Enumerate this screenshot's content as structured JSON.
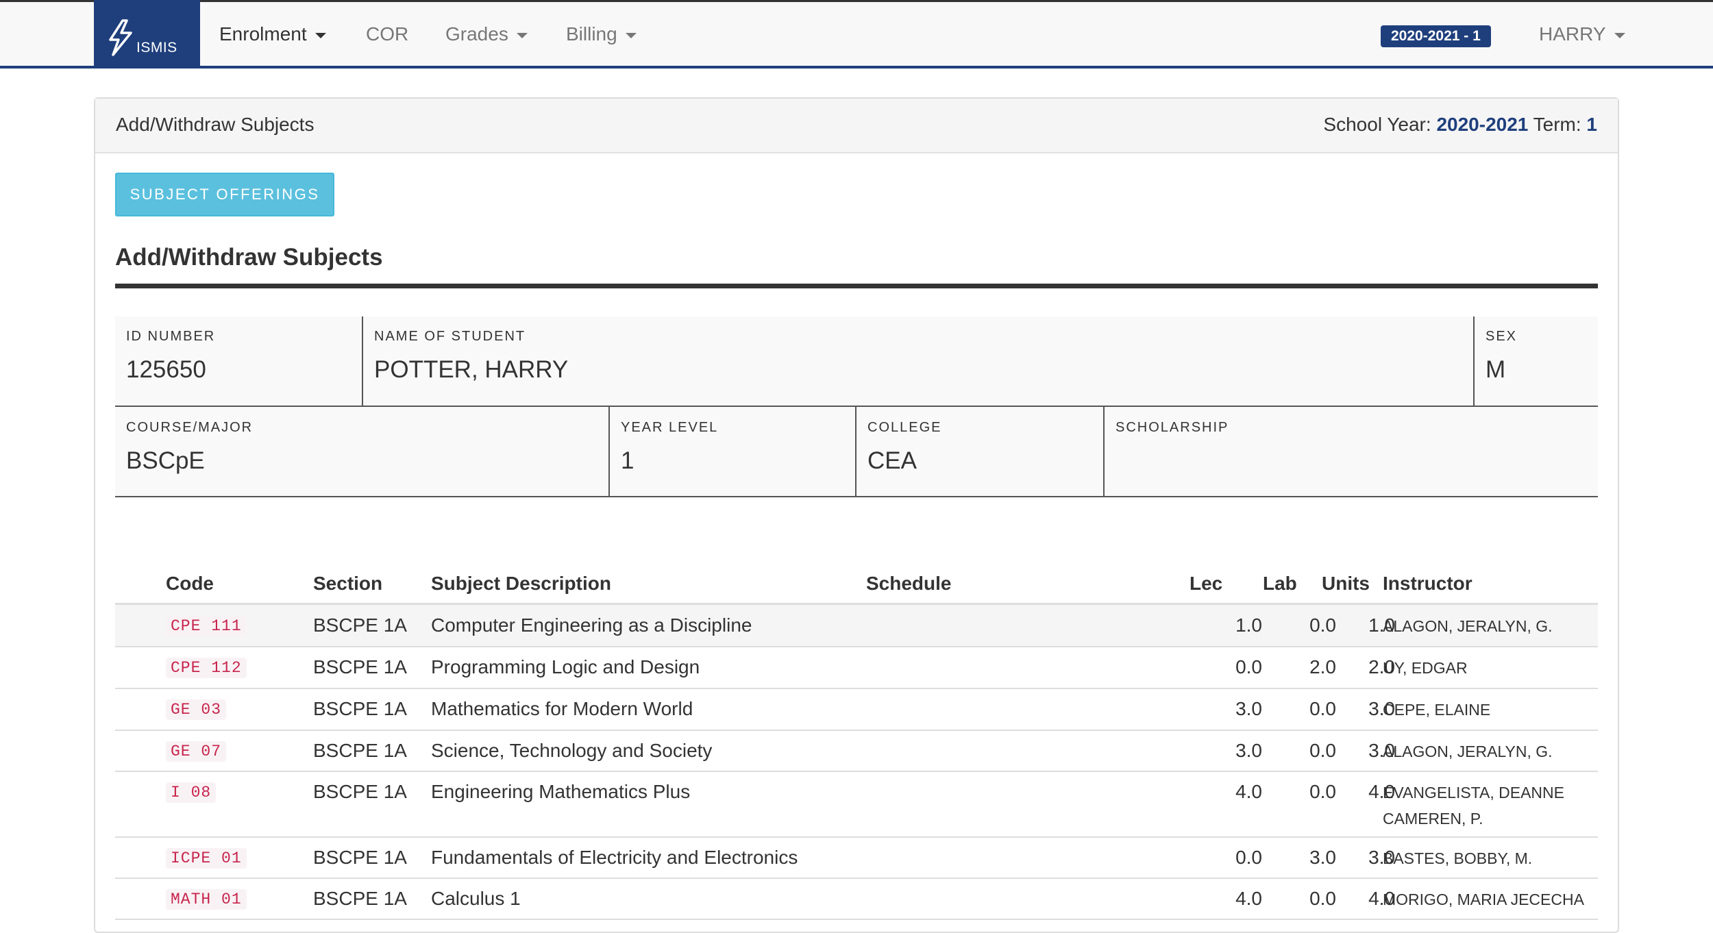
{
  "navbar": {
    "logo_text": "ISMIS",
    "items": [
      {
        "label": "Enrolment",
        "has_dropdown": true,
        "active": true
      },
      {
        "label": "COR",
        "has_dropdown": false,
        "active": false
      },
      {
        "label": "Grades",
        "has_dropdown": true,
        "active": false
      },
      {
        "label": "Billing",
        "has_dropdown": true,
        "active": false
      }
    ],
    "term_badge": "2020-2021 - 1",
    "user": "HARRY"
  },
  "panel": {
    "title": "Add/Withdraw Subjects",
    "school_year_label": "School Year:",
    "school_year": "2020-2021",
    "term_label": "Term:",
    "term": "1"
  },
  "offerings_button": "SUBJECT OFFERINGS",
  "section_title": "Add/Withdraw Subjects",
  "student": {
    "id_label": "ID NUMBER",
    "id": "125650",
    "name_label": "NAME OF STUDENT",
    "name": "POTTER, HARRY",
    "sex_label": "SEX",
    "sex": "M",
    "course_label": "COURSE/MAJOR",
    "course": "BSCpE",
    "year_label": "YEAR LEVEL",
    "year": "1",
    "college_label": "COLLEGE",
    "college": "CEA",
    "scholarship_label": "SCHOLARSHIP",
    "scholarship": ""
  },
  "table": {
    "headers": {
      "code": "Code",
      "section": "Section",
      "description": "Subject Description",
      "schedule": "Schedule",
      "lec": "Lec",
      "lab": "Lab",
      "units": "Units",
      "instructor": "Instructor"
    },
    "rows": [
      {
        "code": "CPE 111",
        "section": "BSCPE 1A",
        "description": "Computer Engineering as a Discipline",
        "schedule": "",
        "lec": "1.0",
        "lab": "0.0",
        "units": "1.0",
        "instructor": "ALAGON, JERALYN, G."
      },
      {
        "code": "CPE 112",
        "section": "BSCPE 1A",
        "description": "Programming Logic and Design",
        "schedule": "",
        "lec": "0.0",
        "lab": "2.0",
        "units": "2.0",
        "instructor": "UY, EDGAR"
      },
      {
        "code": "GE 03",
        "section": "BSCPE 1A",
        "description": "Mathematics for Modern World",
        "schedule": "",
        "lec": "3.0",
        "lab": "0.0",
        "units": "3.0",
        "instructor": "CEPE, ELAINE"
      },
      {
        "code": "GE 07",
        "section": "BSCPE 1A",
        "description": "Science, Technology and Society",
        "schedule": "",
        "lec": "3.0",
        "lab": "0.0",
        "units": "3.0",
        "instructor": "ALAGON, JERALYN, G."
      },
      {
        "code": "I 08",
        "section": "BSCPE 1A",
        "description": "Engineering Mathematics Plus",
        "schedule": "",
        "lec": "4.0",
        "lab": "0.0",
        "units": "4.0",
        "instructor": "EVANGELISTA, DEANNE CAMEREN, P."
      },
      {
        "code": "ICPE 01",
        "section": "BSCPE 1A",
        "description": "Fundamentals of Electricity and Electronics",
        "schedule": "",
        "lec": "0.0",
        "lab": "3.0",
        "units": "3.0",
        "instructor": "BASTES, BOBBY, M."
      },
      {
        "code": "MATH 01",
        "section": "BSCPE 1A",
        "description": "Calculus 1",
        "schedule": "",
        "lec": "4.0",
        "lab": "0.0",
        "units": "4.0",
        "instructor": "MORIGO, MARIA JECECHA"
      }
    ]
  },
  "colors": {
    "brand": "#1f3f7c",
    "info_button": "#5bc0de",
    "code_text": "#c7254e"
  }
}
